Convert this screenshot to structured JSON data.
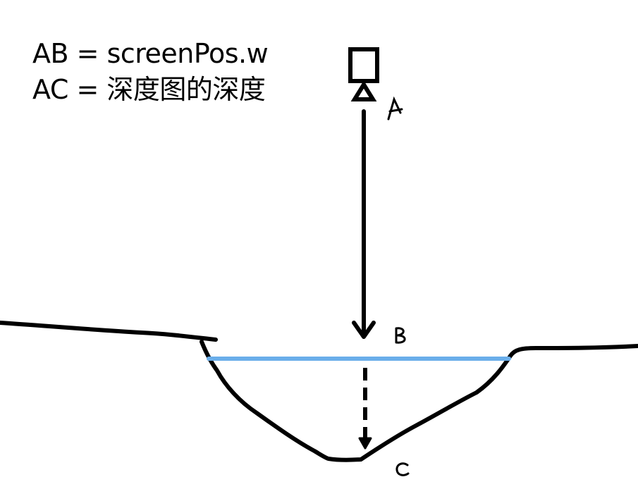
{
  "formulas": {
    "line1": "AB = screenPos.w",
    "line2": "AC = 深度图的深度"
  },
  "points": {
    "a": "A",
    "b": "B",
    "c": "C"
  },
  "colors": {
    "ink": "#000000",
    "water_line": "#6aaeea",
    "background": "#ffffff"
  },
  "icons": [
    "camera-icon"
  ]
}
